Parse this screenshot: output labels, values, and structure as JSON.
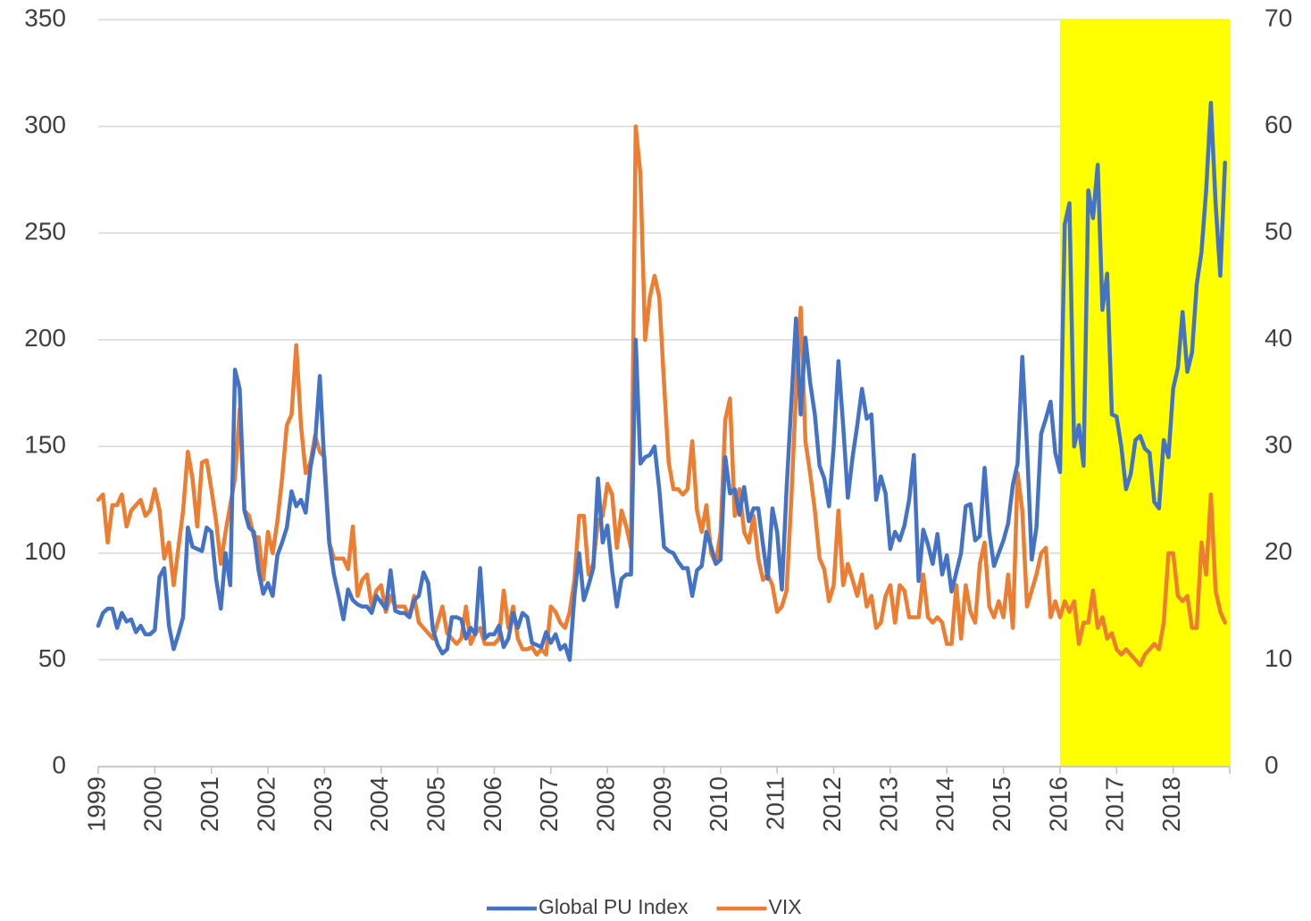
{
  "chart_data": {
    "type": "line",
    "categories": [
      "1999",
      null,
      null,
      null,
      null,
      null,
      null,
      null,
      null,
      null,
      null,
      null,
      "2000",
      null,
      null,
      null,
      null,
      null,
      null,
      null,
      null,
      null,
      null,
      null,
      "2001",
      null,
      null,
      null,
      null,
      null,
      null,
      null,
      null,
      null,
      null,
      null,
      "2002",
      null,
      null,
      null,
      null,
      null,
      null,
      null,
      null,
      null,
      null,
      null,
      "2003",
      null,
      null,
      null,
      null,
      null,
      null,
      null,
      null,
      null,
      null,
      null,
      "2004",
      null,
      null,
      null,
      null,
      null,
      null,
      null,
      null,
      null,
      null,
      null,
      "2005",
      null,
      null,
      null,
      null,
      null,
      null,
      null,
      null,
      null,
      null,
      null,
      "2006",
      null,
      null,
      null,
      null,
      null,
      null,
      null,
      null,
      null,
      null,
      null,
      "2007",
      null,
      null,
      null,
      null,
      null,
      null,
      null,
      null,
      null,
      null,
      null,
      "2008",
      null,
      null,
      null,
      null,
      null,
      null,
      null,
      null,
      null,
      null,
      null,
      "2009",
      null,
      null,
      null,
      null,
      null,
      null,
      null,
      null,
      null,
      null,
      null,
      "2010",
      null,
      null,
      null,
      null,
      null,
      null,
      null,
      null,
      null,
      null,
      null,
      "2011",
      null,
      null,
      null,
      null,
      null,
      null,
      null,
      null,
      null,
      null,
      null,
      "2012",
      null,
      null,
      null,
      null,
      null,
      null,
      null,
      null,
      null,
      null,
      null,
      "2013",
      null,
      null,
      null,
      null,
      null,
      null,
      null,
      null,
      null,
      null,
      null,
      "2014",
      null,
      null,
      null,
      null,
      null,
      null,
      null,
      null,
      null,
      null,
      null,
      "2015",
      null,
      null,
      null,
      null,
      null,
      null,
      null,
      null,
      null,
      null,
      null,
      "2016",
      null,
      null,
      null,
      null,
      null,
      null,
      null,
      null,
      null,
      null,
      null,
      "2017",
      null,
      null,
      null,
      null,
      null,
      null,
      null,
      null,
      null,
      null,
      null,
      "2018",
      null,
      null,
      null,
      null,
      null,
      null,
      null,
      null,
      null,
      null,
      null
    ],
    "series": [
      {
        "name": "Global PU Index",
        "color": "#4472c4",
        "axis": "y",
        "values": [
          66,
          72,
          74,
          74,
          65,
          72,
          68,
          69,
          63,
          66,
          62,
          62,
          64,
          89,
          93,
          66,
          55,
          62,
          70,
          112,
          103,
          102,
          101,
          112,
          110,
          88,
          74,
          100,
          85,
          186,
          177,
          120,
          112,
          110,
          92,
          81,
          86,
          80,
          99,
          105,
          112,
          129,
          122,
          125,
          119,
          140,
          152,
          183,
          140,
          105,
          90,
          80,
          69,
          83,
          78,
          76,
          75,
          75,
          72,
          80,
          77,
          74,
          92,
          73,
          72,
          72,
          70,
          78,
          80,
          91,
          86,
          64,
          57,
          53,
          55,
          70,
          70,
          69,
          60,
          65,
          62,
          93,
          60,
          62,
          62,
          66,
          56,
          60,
          72,
          65,
          72,
          70,
          58,
          57,
          56,
          63,
          58,
          62,
          55,
          57,
          50,
          80,
          100,
          78,
          85,
          93,
          135,
          105,
          113,
          92,
          75,
          88,
          90,
          90,
          200,
          142,
          145,
          146,
          150,
          130,
          103,
          101,
          100,
          96,
          93,
          93,
          80,
          92,
          94,
          110,
          103,
          95,
          97,
          145,
          128,
          130,
          118,
          131,
          115,
          121,
          121,
          104,
          88,
          121,
          110,
          83,
          130,
          170,
          210,
          165,
          201,
          180,
          165,
          141,
          135,
          122,
          150,
          190,
          160,
          126,
          145,
          160,
          177,
          163,
          165,
          125,
          136,
          128,
          102,
          110,
          106,
          113,
          125,
          146,
          87,
          111,
          104,
          95,
          109,
          90,
          99,
          82,
          91,
          100,
          122,
          123,
          106,
          108,
          140,
          110,
          94,
          100,
          106,
          114,
          132,
          142,
          192,
          150,
          97,
          112,
          156,
          163,
          171,
          147,
          138,
          254,
          264,
          150,
          160,
          141,
          270,
          257,
          282,
          214,
          231,
          165,
          164,
          150,
          130,
          137,
          153,
          155,
          149,
          147,
          124,
          121,
          153,
          145,
          177,
          187,
          213,
          185,
          194,
          226,
          241,
          270,
          311,
          264,
          230,
          283
        ]
      },
      {
        "name": "VIX",
        "color": "#ed7d31",
        "axis": "y2",
        "values": [
          25,
          25.5,
          21,
          24.5,
          24.5,
          25.5,
          22.5,
          24,
          24.5,
          25,
          23.5,
          24,
          26,
          24,
          19.5,
          21,
          17,
          20.5,
          24,
          29.5,
          27,
          22.5,
          28.5,
          28.7,
          26,
          23,
          19,
          22,
          24.5,
          27,
          33.5,
          24,
          23.5,
          21.5,
          21.5,
          17.5,
          22,
          20,
          23,
          27,
          32,
          33,
          39.5,
          32,
          27.5,
          28.5,
          31,
          29.5,
          29,
          21,
          19.5,
          19.5,
          19.5,
          18.5,
          22.5,
          16,
          17.5,
          18,
          15,
          16.5,
          17,
          14.5,
          16,
          15,
          15,
          15,
          14,
          16,
          13.5,
          13,
          12.5,
          12,
          13.5,
          15,
          12.5,
          12,
          11.5,
          12,
          15,
          11.5,
          12.5,
          13,
          11.5,
          11.5,
          11.5,
          12,
          16.5,
          13,
          15,
          12,
          11,
          11,
          11.2,
          10.5,
          11,
          10.5,
          15,
          14.5,
          13.5,
          13,
          14.5,
          17.5,
          23.5,
          23.5,
          18,
          19,
          23,
          23.5,
          26.5,
          25.5,
          20.5,
          24,
          22.5,
          20.5,
          60,
          55.5,
          40,
          44,
          46,
          44,
          36,
          28.5,
          26,
          26,
          25.5,
          26,
          30.5,
          24,
          22,
          24.5,
          20,
          19,
          22,
          32.5,
          34.5,
          23.5,
          26,
          22,
          21,
          23.5,
          19.5,
          17.5,
          18,
          17,
          14.5,
          15,
          16.5,
          25,
          35,
          43,
          30.5,
          27.5,
          24,
          19.5,
          18.5,
          15.5,
          17,
          24,
          17,
          19,
          17.5,
          16,
          18,
          15,
          16,
          13,
          13.5,
          16,
          17,
          13.5,
          17,
          16.5,
          14,
          14,
          14,
          18,
          14,
          13.5,
          14,
          13.5,
          11.5,
          11.5,
          17,
          12,
          17,
          14.5,
          13.5,
          19,
          21,
          15,
          14,
          15.5,
          14,
          18,
          13,
          27.5,
          24,
          15,
          16.5,
          18,
          20,
          20.5,
          14,
          15.5,
          14,
          15.5,
          14.5,
          15.5,
          11.5,
          13.5,
          13.5,
          16.5,
          13,
          14,
          12,
          12.5,
          11,
          10.5,
          11,
          10.5,
          10,
          9.5,
          10.5,
          11,
          11.5,
          11,
          13.5,
          20,
          20,
          16,
          15.5,
          16,
          13,
          13,
          21,
          18,
          25.5,
          16.5,
          14.5,
          13.5
        ]
      }
    ],
    "ylim": [
      0,
      350
    ],
    "yticks": [
      0,
      50,
      100,
      150,
      200,
      250,
      300,
      350
    ],
    "y2lim": [
      0,
      70
    ],
    "y2ticks": [
      0,
      10,
      20,
      30,
      40,
      50,
      60,
      70
    ],
    "grid": true,
    "legend": "bottom",
    "highlight": {
      "start": "2016",
      "color": "#ffff00"
    }
  }
}
